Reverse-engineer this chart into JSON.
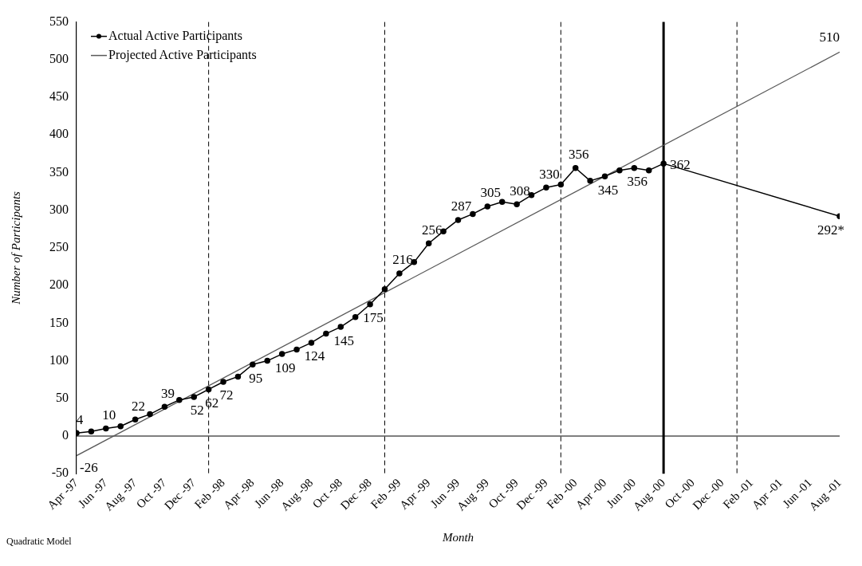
{
  "chart_data": {
    "type": "line",
    "ylabel": "Number of Participants",
    "xlabel": "Month",
    "x": [
      "1997-04",
      "1997-05",
      "1997-06",
      "1997-07",
      "1997-08",
      "1997-09",
      "1997-10",
      "1997-11",
      "1997-12",
      "1998-01",
      "1998-02",
      "1998-03",
      "1998-04",
      "1998-05",
      "1998-06",
      "1998-07",
      "1998-08",
      "1998-09",
      "1998-10",
      "1998-11",
      "1998-12",
      "1999-01",
      "1999-02",
      "1999-03",
      "1999-04",
      "1999-05",
      "1999-06",
      "1999-07",
      "1999-08",
      "1999-09",
      "1999-10",
      "1999-11",
      "1999-12",
      "2000-01",
      "2000-02",
      "2000-03",
      "2000-04",
      "2000-05",
      "2000-06",
      "2000-07",
      "2000-08",
      "2001-08"
    ],
    "series": [
      {
        "name": "Actual Active Participants",
        "color": "#000000",
        "marker": "circle",
        "values": [
          4,
          6,
          10,
          13,
          22,
          29,
          39,
          48,
          52,
          62,
          72,
          79,
          95,
          100,
          109,
          115,
          124,
          136,
          145,
          158,
          175,
          195,
          216,
          231,
          256,
          272,
          287,
          295,
          305,
          311,
          308,
          320,
          330,
          334,
          356,
          339,
          345,
          353,
          356,
          353,
          362,
          292
        ],
        "value_labels": [
          "4",
          null,
          "10",
          null,
          "22",
          null,
          "39",
          null,
          "52",
          "62",
          "72",
          null,
          "95",
          null,
          "109",
          null,
          "124",
          null,
          "145",
          null,
          "175",
          null,
          "216",
          null,
          "256",
          null,
          "287",
          null,
          "305",
          null,
          "308",
          null,
          "330",
          null,
          "356",
          null,
          "345",
          null,
          "356",
          null,
          "362",
          "292*"
        ]
      },
      {
        "name": "Projected Active Participants",
        "color": "#595959",
        "marker": "none",
        "x": [
          "1997-04",
          "2001-08"
        ],
        "values": [
          -26,
          510
        ],
        "value_labels": [
          "-26",
          "510"
        ]
      }
    ],
    "xlim": [
      "1997-04",
      "2001-08"
    ],
    "xticks": [
      {
        "value": "1997-04",
        "label": "Apr -97"
      },
      {
        "value": "1997-06",
        "label": "Jun -97"
      },
      {
        "value": "1997-08",
        "label": "Aug -97"
      },
      {
        "value": "1997-10",
        "label": "Oct -97"
      },
      {
        "value": "1997-12",
        "label": "Dec -97"
      },
      {
        "value": "1998-02",
        "label": "Feb -98"
      },
      {
        "value": "1998-04",
        "label": "Apr -98"
      },
      {
        "value": "1998-06",
        "label": "Jun -98"
      },
      {
        "value": "1998-08",
        "label": "Aug -98"
      },
      {
        "value": "1998-10",
        "label": "Oct -98"
      },
      {
        "value": "1998-12",
        "label": "Dec -98"
      },
      {
        "value": "1999-02",
        "label": "Feb -99"
      },
      {
        "value": "1999-04",
        "label": "Apr -99"
      },
      {
        "value": "1999-06",
        "label": "Jun -99"
      },
      {
        "value": "1999-08",
        "label": "Aug -99"
      },
      {
        "value": "1999-10",
        "label": "Oct -99"
      },
      {
        "value": "1999-12",
        "label": "Dec -99"
      },
      {
        "value": "2000-02",
        "label": "Feb -00"
      },
      {
        "value": "2000-04",
        "label": "Apr -00"
      },
      {
        "value": "2000-06",
        "label": "Jun -00"
      },
      {
        "value": "2000-08",
        "label": "Aug -00"
      },
      {
        "value": "2000-10",
        "label": "Oct -00"
      },
      {
        "value": "2000-12",
        "label": "Dec -00"
      },
      {
        "value": "2001-02",
        "label": "Feb -01"
      },
      {
        "value": "2001-04",
        "label": "Apr -01"
      },
      {
        "value": "2001-06",
        "label": "Jun -01"
      },
      {
        "value": "2001-08",
        "label": "Aug -01"
      }
    ],
    "ylim": [
      -50,
      550
    ],
    "yticks": [
      -50,
      0,
      50,
      100,
      150,
      200,
      250,
      300,
      350,
      400,
      450,
      500,
      550
    ],
    "ref_lines": [
      {
        "axis": "x",
        "value": "1998-01",
        "color": "#000000",
        "line_style": "dashed"
      },
      {
        "axis": "x",
        "value": "1999-01",
        "color": "#000000",
        "line_style": "dashed"
      },
      {
        "axis": "x",
        "value": "2000-01",
        "color": "#000000",
        "line_style": "dashed"
      },
      {
        "axis": "x",
        "value": "2000-08",
        "color": "#000000",
        "line_style": "solid"
      },
      {
        "axis": "x",
        "value": "2001-01",
        "color": "#000000",
        "line_style": "dashed"
      }
    ],
    "grid": false,
    "legend": "top left",
    "line_style": "solid",
    "annotations": [
      "Quadratic Model"
    ]
  }
}
